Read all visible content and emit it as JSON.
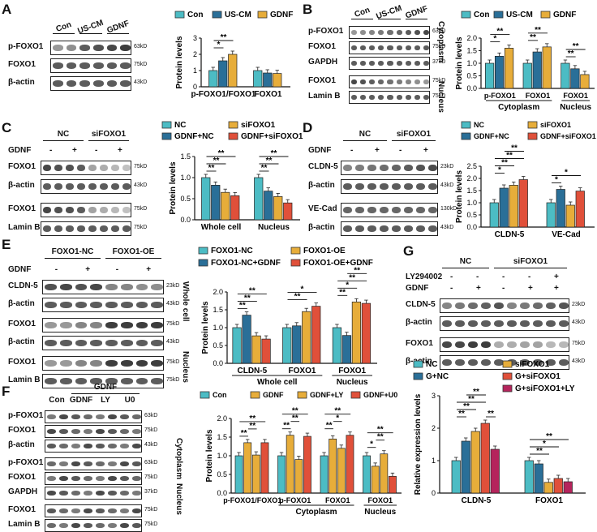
{
  "colors": {
    "teal": "#4cbcc4",
    "blue": "#2a6f98",
    "gold": "#e7ad3a",
    "red": "#e0503a",
    "crimson": "#b5245c"
  },
  "panels": [
    {
      "id": "A",
      "label": "A",
      "blot": {
        "groups": [
          "Con",
          "US-CM",
          "GDNF"
        ],
        "rows": [
          "p-FOXO1",
          "FOXO1",
          "β-actin"
        ],
        "kd": [
          "63kD",
          "75kD",
          "43kD"
        ]
      },
      "legend": [
        "Con",
        "US-CM",
        "GDNF"
      ],
      "chart_data": {
        "type": "bar",
        "ylabel": "Protein levels",
        "ylim": [
          0,
          3
        ],
        "yticks": [
          0,
          1,
          2,
          3
        ],
        "categories": [
          "p-FOXO1/FOXO1",
          "FOXO1"
        ],
        "series": [
          {
            "name": "Con",
            "values": [
              1.0,
              1.0
            ]
          },
          {
            "name": "US-CM",
            "values": [
              1.6,
              0.85
            ]
          },
          {
            "name": "GDNF",
            "values": [
              2.0,
              0.82
            ]
          }
        ],
        "sig": [
          "*",
          "**"
        ]
      }
    },
    {
      "id": "B",
      "label": "B",
      "blot": {
        "groups": [
          "Con",
          "US-CM",
          "GDNF"
        ],
        "rows": [
          "p-FOXO1",
          "FOXO1",
          "GAPDH",
          "FOXO1",
          "Lamin B"
        ],
        "kd": [
          "63kD",
          "75kD",
          "37kD",
          "75kD",
          "75kD"
        ],
        "side": [
          "Cytoplasm",
          "Nucleus"
        ]
      },
      "legend": [
        "Con",
        "US-CM",
        "GDNF"
      ],
      "chart_data": {
        "type": "bar",
        "ylabel": "Protein levels",
        "ylim": [
          0,
          2
        ],
        "yticks": [
          0.0,
          0.5,
          1.0,
          1.5,
          2.0
        ],
        "categories": [
          "p-FOXO1",
          "FOXO1",
          "FOXO1"
        ],
        "group_labels": [
          "Cytoplasm",
          "Nucleus"
        ],
        "series": [
          {
            "name": "Con",
            "values": [
              1.0,
              1.0,
              1.0
            ]
          },
          {
            "name": "US-CM",
            "values": [
              1.28,
              1.45,
              0.78
            ]
          },
          {
            "name": "GDNF",
            "values": [
              1.6,
              1.65,
              0.55
            ]
          }
        ],
        "sig": [
          "*",
          "**",
          "**",
          "**",
          "**",
          "**"
        ]
      }
    },
    {
      "id": "C",
      "label": "C",
      "blot": {
        "groups": [
          "NC",
          "siFOXO1"
        ],
        "gdnf_label": "GDNF",
        "lanes": [
          "-",
          "+",
          "-",
          "+"
        ],
        "rows": [
          "FOXO1",
          "β-actin",
          "FOXO1",
          "Lamin B"
        ],
        "kd": [
          "75kD",
          "43kD",
          "75kD",
          "75kD"
        ]
      },
      "legend": [
        "NC",
        "siFOXO1",
        "GDNF+NC",
        "GDNF+siFOXO1"
      ],
      "chart_data": {
        "type": "bar",
        "ylabel": "Protein levels",
        "ylim": [
          0,
          1.5
        ],
        "yticks": [
          0.0,
          0.5,
          1.0,
          1.5
        ],
        "categories": [
          "Whole cell",
          "Nucleus"
        ],
        "series": [
          {
            "name": "NC",
            "values": [
              1.0,
              1.0
            ]
          },
          {
            "name": "GDNF+NC",
            "values": [
              0.82,
              0.68
            ]
          },
          {
            "name": "siFOXO1",
            "values": [
              0.65,
              0.55
            ]
          },
          {
            "name": "GDNF+siFOXO1",
            "values": [
              0.57,
              0.4
            ]
          }
        ],
        "sig": [
          "**",
          "**",
          "**",
          "**",
          "**",
          "**"
        ]
      }
    },
    {
      "id": "D",
      "label": "D",
      "blot": {
        "groups": [
          "NC",
          "siFOXO1"
        ],
        "gdnf_label": "GDNF",
        "lanes": [
          "-",
          "+",
          "-",
          "+"
        ],
        "rows": [
          "CLDN-5",
          "β-actin",
          "VE-Cad",
          "β-actin"
        ],
        "kd": [
          "23kD",
          "43kD",
          "130kD",
          "43kD"
        ]
      },
      "legend": [
        "NC",
        "siFOXO1",
        "GDNF+NC",
        "GDNF+siFOXO1"
      ],
      "chart_data": {
        "type": "bar",
        "ylabel": "Protein levels",
        "ylim": [
          0,
          2.5
        ],
        "yticks": [
          0.0,
          0.5,
          1.0,
          1.5,
          2.0,
          2.5
        ],
        "categories": [
          "CLDN-5",
          "VE-Cad"
        ],
        "series": [
          {
            "name": "NC",
            "values": [
              1.0,
              1.0
            ]
          },
          {
            "name": "GDNF+NC",
            "values": [
              1.6,
              1.55
            ]
          },
          {
            "name": "siFOXO1",
            "values": [
              1.72,
              0.9
            ]
          },
          {
            "name": "GDNF+siFOXO1",
            "values": [
              1.95,
              1.48
            ]
          }
        ],
        "sig": [
          "*",
          "**",
          "**",
          "**",
          "*",
          "*"
        ]
      }
    },
    {
      "id": "E",
      "label": "E",
      "blot": {
        "groups": [
          "FOXO1-NC",
          "FOXO1-OE"
        ],
        "gdnf_label": "GDNF",
        "lanes": [
          "-",
          "+",
          "-",
          "+"
        ],
        "rows": [
          "CLDN-5",
          "β-actin",
          "FOXO1",
          "β-actin",
          "FOXO1",
          "Lamin B"
        ],
        "kd": [
          "23kD",
          "43kD",
          "75kD",
          "43kD",
          "75kD",
          "75kD"
        ],
        "side": [
          "Whole cell",
          "Nucleus"
        ]
      },
      "legend": [
        "FOXO1-NC",
        "FOXO1-OE",
        "FOXO1-NC+GDNF",
        "FOXO1-OE+GDNF"
      ],
      "chart_data": {
        "type": "bar",
        "ylabel": "Protein levels",
        "ylim": [
          0,
          2
        ],
        "yticks": [
          0.0,
          0.5,
          1.0,
          1.5,
          2.0
        ],
        "categories": [
          "CLDN-5",
          "FOXO1",
          "FOXO1"
        ],
        "group_labels": [
          "Whole cell",
          "Nucleus"
        ],
        "series": [
          {
            "name": "FOXO1-NC",
            "values": [
              1.0,
              1.0,
              1.0
            ]
          },
          {
            "name": "FOXO1-NC+GDNF",
            "values": [
              1.35,
              1.05,
              0.78
            ]
          },
          {
            "name": "FOXO1-OE",
            "values": [
              0.77,
              1.45,
              1.72
            ]
          },
          {
            "name": "FOXO1-OE+GDNF",
            "values": [
              0.68,
              1.6,
              1.68
            ]
          }
        ],
        "sig": [
          "**",
          "**",
          "**",
          "**",
          "*",
          "**",
          "*",
          "**",
          "**"
        ]
      }
    },
    {
      "id": "F",
      "label": "F",
      "blot": {
        "groups": [
          "GDNF"
        ],
        "lanes": [
          "Con",
          "GDNF",
          "LY",
          "U0"
        ],
        "rows": [
          "p-FOXO1",
          "FOXO1",
          "β-actin",
          "p-FOXO1",
          "FOXO1",
          "GAPDH",
          "FOXO1",
          "Lamin B"
        ],
        "kd": [
          "63kD",
          "75kD",
          "43kD",
          "63kD",
          "75kD",
          "37kD",
          "75kD",
          "75kD"
        ],
        "side": [
          "Cytoplasm",
          "Nucleus"
        ]
      },
      "legend": [
        "Con",
        "GDNF",
        "GDNF+LY",
        "GDNF+U0"
      ],
      "chart_data": {
        "type": "bar",
        "ylabel": "Protein levels",
        "ylim": [
          0,
          2
        ],
        "yticks": [
          0.0,
          0.5,
          1.0,
          1.5,
          2.0
        ],
        "categories": [
          "p-FOXO1/FOXO1",
          "p-FOXO1",
          "FOXO1",
          "FOXO1"
        ],
        "group_labels": [
          "Cytoplasm",
          "Nucleus"
        ],
        "series": [
          {
            "name": "Con",
            "values": [
              1.0,
              1.0,
              1.0,
              1.0
            ]
          },
          {
            "name": "GDNF",
            "values": [
              1.35,
              1.55,
              1.45,
              0.72
            ]
          },
          {
            "name": "GDNF+LY",
            "values": [
              1.02,
              0.9,
              1.2,
              1.05
            ]
          },
          {
            "name": "GDNF+U0",
            "values": [
              1.35,
              1.52,
              1.55,
              0.45
            ]
          }
        ],
        "sig": [
          "**",
          "**",
          "**",
          "**",
          "**",
          "**",
          "**",
          "*",
          "**",
          "*",
          "**",
          "**"
        ]
      }
    },
    {
      "id": "G",
      "label": "G",
      "blot": {
        "groups": [
          "NC",
          "siFOXO1"
        ],
        "treat_labels": [
          "LY294002",
          "GDNF"
        ],
        "ly": [
          "-",
          "-",
          "-",
          "-",
          "+"
        ],
        "gdnf": [
          "-",
          "+",
          "-",
          "+",
          "+"
        ],
        "rows": [
          "CLDN-5",
          "β-actin",
          "FOXO1",
          "β-actin"
        ],
        "kd": [
          "23kD",
          "43kD",
          "75kD",
          "43kD"
        ]
      },
      "legend": [
        "NC",
        "siFOXO1",
        "G+NC",
        "G+siFOXO1",
        "G+siFOXO1+LY"
      ],
      "chart_data": {
        "type": "bar",
        "ylabel": "Relative expression levels",
        "ylim": [
          0,
          3
        ],
        "yticks": [
          0,
          1,
          2,
          3
        ],
        "categories": [
          "CLDN-5",
          "FOXO1"
        ],
        "series": [
          {
            "name": "NC",
            "values": [
              1.0,
              1.0
            ]
          },
          {
            "name": "G+NC",
            "values": [
              1.6,
              0.9
            ]
          },
          {
            "name": "siFOXO1",
            "values": [
              1.9,
              0.33
            ]
          },
          {
            "name": "G+siFOXO1",
            "values": [
              2.15,
              0.45
            ]
          },
          {
            "name": "G+siFOXO1+LY",
            "values": [
              1.35,
              0.35
            ]
          }
        ],
        "sig": [
          "**",
          "**",
          "**",
          "**",
          "**",
          "**",
          "*",
          "**"
        ]
      }
    }
  ]
}
